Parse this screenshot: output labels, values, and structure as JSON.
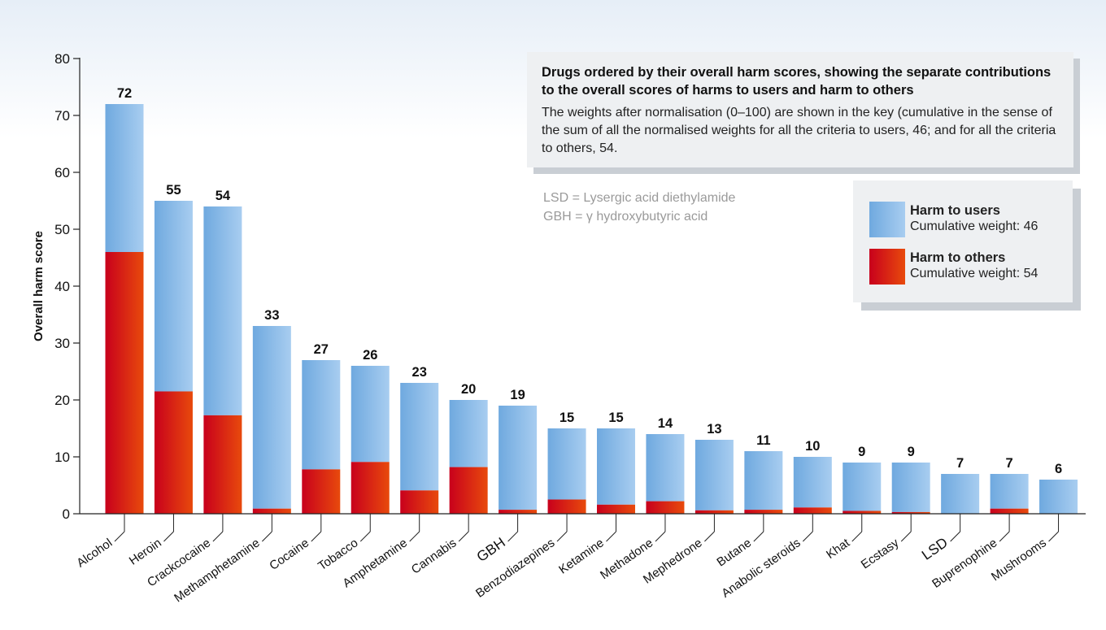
{
  "chart_data": {
    "type": "bar",
    "stacked": true,
    "title": "Drugs ordered by their overall harm scores, showing the separate contributions to the overall scores of harms to users and harm to others",
    "description": "The weights after normalisation (0–100) are shown in the key (cumulative in the sense of the sum of all the normalised weights for all the criteria to users, 46; and for all the criteria to others, 54.",
    "ylabel": "Overall harm score",
    "xlabel": "",
    "ylim": [
      0,
      80
    ],
    "yticks": [
      0,
      10,
      20,
      30,
      40,
      50,
      60,
      70,
      80
    ],
    "grid": false,
    "legend_position": "right",
    "categories": [
      "Alcohol",
      "Heroin",
      "Crackcocaine",
      "Methamphetamine",
      "Cocaine",
      "Tobacco",
      "Amphetamine",
      "Cannabis",
      "GBH",
      "Benzodiazepines",
      "Ketamine",
      "Methadone",
      "Mephedrone",
      "Butane",
      "Anabolic steroids",
      "Khat",
      "Ecstasy",
      "LSD",
      "Buprenophine",
      "Mushrooms"
    ],
    "totals": [
      72,
      55,
      54,
      33,
      27,
      26,
      23,
      20,
      19,
      15,
      15,
      14,
      13,
      11,
      10,
      9,
      9,
      7,
      7,
      6
    ],
    "series": [
      {
        "name": "Harm to others",
        "values": [
          46,
          21.5,
          17.3,
          0.9,
          7.8,
          9.1,
          4.1,
          8.2,
          0.7,
          2.5,
          1.6,
          2.2,
          0.6,
          0.7,
          1.1,
          0.5,
          0.3,
          0,
          0.9,
          0
        ]
      },
      {
        "name": "Harm to users",
        "values": [
          26,
          33.5,
          36.7,
          32.1,
          19.2,
          16.9,
          18.9,
          11.8,
          18.3,
          12.5,
          13.4,
          11.8,
          12.4,
          10.3,
          8.9,
          8.5,
          8.7,
          7,
          6.1,
          6
        ]
      }
    ],
    "colors": {
      "users_light": "#a8cdf0",
      "users_dark": "#6fa9df",
      "others_light": "#e84a0c",
      "others_dark": "#c8001c",
      "axis": "#222222",
      "background_top": "#e6eef7"
    }
  },
  "info": {
    "title": "Drugs ordered by their overall harm scores, showing the separate contributions to the overall scores of harms to users and harm to others",
    "body": "The weights after normalisation (0–100) are shown in the key (cumulative in the sense of the sum of all the normalised weights for all the criteria to users, 46; and for all the criteria to others, 54."
  },
  "abbreviations": {
    "lsd": "LSD = Lysergic acid diethylamide",
    "gbh": "GBH = γ hydroxybutyric acid"
  },
  "legend": {
    "users_name": "Harm to users",
    "users_weight": "Cumulative weight: 46",
    "others_name": "Harm to others",
    "others_weight": "Cumulative weight: 54"
  }
}
